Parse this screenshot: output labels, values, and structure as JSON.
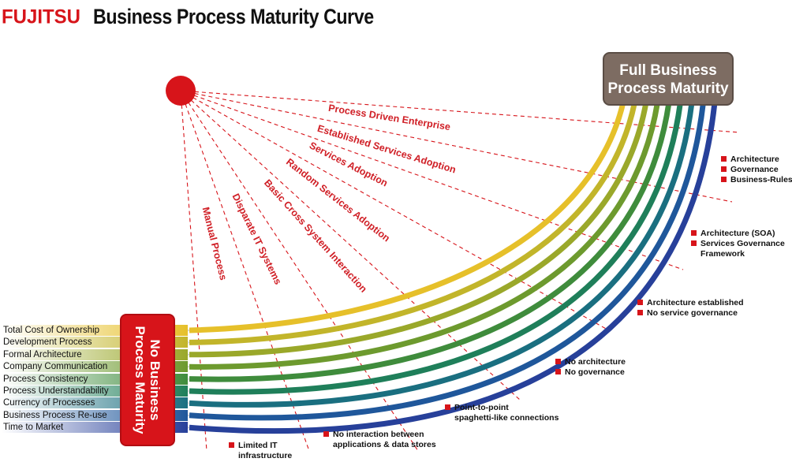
{
  "header": {
    "logo": "FUJITSU",
    "title": "Business Process Maturity Curve"
  },
  "start_box": "No Business Process Maturity",
  "end_box": "Full Business Process Maturity",
  "rows": [
    {
      "label": "Total Cost of Ownership",
      "color": "#e6c02a"
    },
    {
      "label": "Development Process",
      "color": "#c2b52a"
    },
    {
      "label": "Formal Architecture",
      "color": "#9aa82a"
    },
    {
      "label": "Company Communication",
      "color": "#6d9a2e"
    },
    {
      "label": "Process Consistency",
      "color": "#3f8c3c"
    },
    {
      "label": "Process Understandability",
      "color": "#1f7f5a"
    },
    {
      "label": "Currency of Processes",
      "color": "#1a6f80"
    },
    {
      "label": "Business Process Re-use",
      "color": "#1f579b"
    },
    {
      "label": "Time to Market",
      "color": "#27409a"
    }
  ],
  "stages": [
    "Manual Process",
    "Disparate IT Systems",
    "Basic Cross System Interaction",
    "Random Services Adoption",
    "Services Adoption",
    "Established Services Adoption",
    "Process Driven Enterprise"
  ],
  "notes": {
    "n1": [
      "Limited IT",
      "infrastructure"
    ],
    "n2": [
      "No interaction between",
      "applications & data stores"
    ],
    "n3": [
      "Point-to-point",
      "spaghetti-like connections"
    ],
    "n4": [
      "No architecture",
      "No governance"
    ],
    "n5": [
      "Architecture established",
      "No service governance"
    ],
    "n6": [
      "Architecture (SOA)",
      "Services Governance",
      "Framework"
    ],
    "n7": [
      "Architecture",
      "Governance",
      "Business-Rules"
    ]
  },
  "colors": {
    "accent_red": "#d7141a",
    "end_box": "#7d6c62"
  },
  "icons": {
    "sun": "red-sun-icon",
    "bullet": "red-square-icon"
  }
}
